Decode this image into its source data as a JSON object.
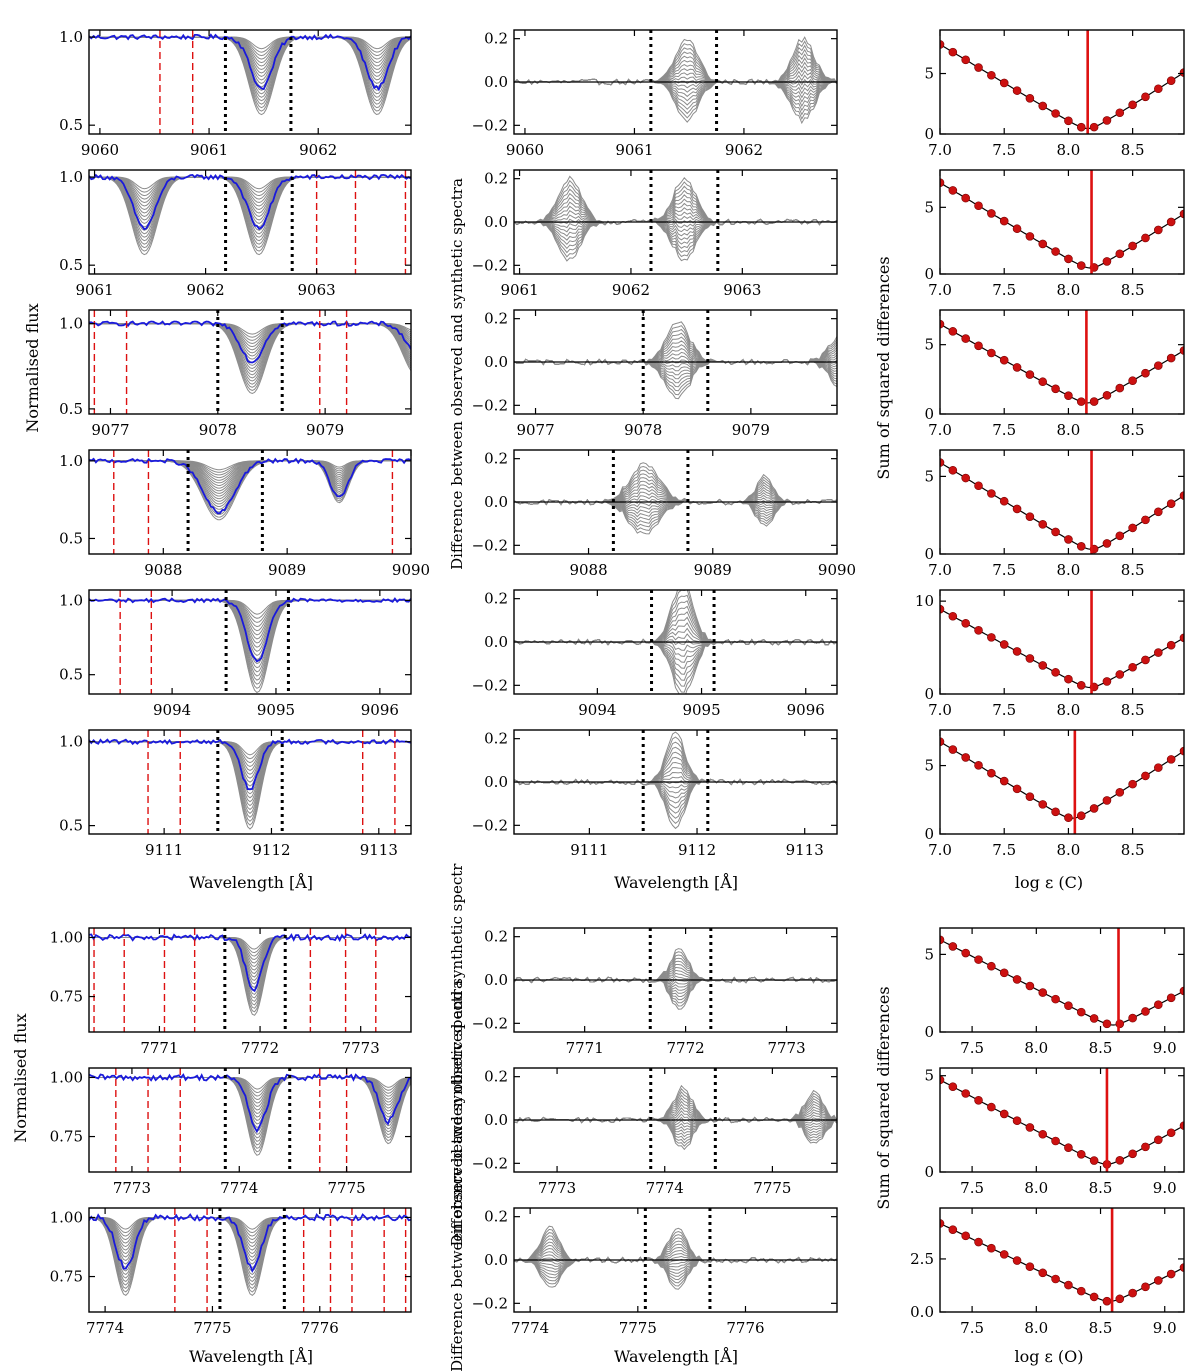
{
  "chart_data": {
    "type": "line",
    "title": "",
    "labels": {
      "flux_ylabel": "Normalised flux",
      "diff_ylabel": "Difference between observed and synthetic spectra",
      "diff_ylabel_o": "Difference between observed and synthetic spectr",
      "chi_ylabel": "Sum of squared differences",
      "wavelength_xlabel": "Wavelength [Å]",
      "abund_xlabel_c": "log ε (C)",
      "abund_xlabel_o": "log ε (O)"
    },
    "series_colors": {
      "observed": "#1a1adb",
      "synthetic": "#8c8c8c",
      "blend_marker": "#dd1111",
      "best_fit": "#dd1111",
      "fit_window": "#000000"
    },
    "rows": [
      {
        "element": "C",
        "flux": {
          "xlim": [
            9059.9,
            9062.85
          ],
          "xticks": [
            9060,
            9061,
            9062
          ],
          "yticks": [
            0.5,
            1.0
          ],
          "yticklabels": [
            "0.5",
            "1.0"
          ],
          "ylim": [
            0.45,
            1.04
          ],
          "lines": [
            {
              "center": 9061.48,
              "depth": 0.44,
              "width": 0.12
            },
            {
              "center": 9062.54,
              "depth": 0.44,
              "width": 0.12
            }
          ],
          "observed_depth_factor": 0.66,
          "window": [
            9061.15,
            9061.75
          ],
          "blend_markers": [
            9060.55,
            9060.85
          ]
        },
        "diff": {
          "xlim": [
            9059.9,
            9062.85
          ],
          "xticks": [
            9060,
            9061,
            9062
          ],
          "yticks": [
            -0.2,
            0.0,
            0.2
          ],
          "yticklabels": [
            "−0.2",
            "0.0",
            "0.2"
          ],
          "ylim": [
            -0.24,
            0.24
          ],
          "window": [
            9061.15,
            9061.75
          ]
        },
        "chi2": {
          "xlim": [
            7.0,
            8.9
          ],
          "xticks": [
            7.0,
            7.5,
            8.0,
            8.5
          ],
          "xticklabels": [
            "7.0",
            "7.5",
            "8.0",
            "8.5"
          ],
          "yticks": [
            0,
            5
          ],
          "yticklabels": [
            "0",
            "5"
          ],
          "ylim": [
            0,
            8.6
          ],
          "x_start": 7.0,
          "step": 0.1,
          "count": 19,
          "min_x": 8.15,
          "min_y": 0.45,
          "left_y": 7.8,
          "best": 8.15
        }
      },
      {
        "element": "C",
        "flux": {
          "xlim": [
            9060.95,
            9063.85
          ],
          "xticks": [
            9061,
            9062,
            9063
          ],
          "yticks": [
            0.5,
            1.0
          ],
          "yticklabels": [
            "0.5",
            "1.0"
          ],
          "ylim": [
            0.45,
            1.04
          ],
          "lines": [
            {
              "center": 9061.45,
              "depth": 0.44,
              "width": 0.12
            },
            {
              "center": 9062.48,
              "depth": 0.44,
              "width": 0.12
            }
          ],
          "observed_depth_factor": 0.66,
          "window": [
            9062.18,
            9062.78
          ],
          "blend_markers": [
            9063.0,
            9063.35,
            9063.8
          ]
        },
        "diff": {
          "xlim": [
            9060.95,
            9063.85
          ],
          "xticks": [
            9061,
            9062,
            9063
          ],
          "yticks": [
            -0.2,
            0.0,
            0.2
          ],
          "yticklabels": [
            "−0.2",
            "0.0",
            "0.2"
          ],
          "ylim": [
            -0.24,
            0.24
          ],
          "window": [
            9062.18,
            9062.78
          ]
        },
        "chi2": {
          "xlim": [
            7.0,
            8.9
          ],
          "xticks": [
            7.0,
            7.5,
            8.0,
            8.5
          ],
          "xticklabels": [
            "7.0",
            "7.5",
            "8.0",
            "8.5"
          ],
          "yticks": [
            0,
            5
          ],
          "yticklabels": [
            "0",
            "5"
          ],
          "ylim": [
            0,
            7.8
          ],
          "x_start": 7.0,
          "step": 0.1,
          "count": 19,
          "min_x": 8.17,
          "min_y": 0.45,
          "left_y": 7.2,
          "best": 8.18
        }
      },
      {
        "element": "C",
        "flux": {
          "xlim": [
            9076.8,
            9079.8
          ],
          "xticks": [
            9077,
            9078,
            9079
          ],
          "yticks": [
            0.5,
            1.0
          ],
          "yticklabels": [
            "0.5",
            "1.0"
          ],
          "ylim": [
            0.47,
            1.08
          ],
          "lines": [
            {
              "center": 9078.32,
              "depth": 0.41,
              "width": 0.13
            },
            {
              "center": 9079.85,
              "depth": 0.3,
              "width": 0.13
            }
          ],
          "observed_depth_factor": 0.55,
          "window": [
            9078.0,
            9078.6
          ],
          "blend_markers": [
            9076.85,
            9077.15,
            9078.95,
            9079.2
          ]
        },
        "diff": {
          "xlim": [
            9076.8,
            9079.8
          ],
          "xticks": [
            9077,
            9078,
            9079
          ],
          "yticks": [
            -0.2,
            0.0,
            0.2
          ],
          "yticklabels": [
            "−0.2",
            "0.0",
            "0.2"
          ],
          "ylim": [
            -0.24,
            0.24
          ],
          "window": [
            9078.0,
            9078.6
          ]
        },
        "chi2": {
          "xlim": [
            7.0,
            8.9
          ],
          "xticks": [
            7.0,
            7.5,
            8.0,
            8.5
          ],
          "xticklabels": [
            "7.0",
            "7.5",
            "8.0",
            "8.5"
          ],
          "yticks": [
            0,
            5
          ],
          "yticklabels": [
            "0",
            "5"
          ],
          "ylim": [
            0,
            7.5
          ],
          "x_start": 7.0,
          "step": 0.1,
          "count": 19,
          "min_x": 8.15,
          "min_y": 0.8,
          "left_y": 6.8,
          "best": 8.14
        }
      },
      {
        "element": "C",
        "flux": {
          "xlim": [
            9087.4,
            9090.0
          ],
          "xticks": [
            9088,
            9089,
            9090
          ],
          "yticks": [
            0.5,
            1.0
          ],
          "yticklabels": [
            "0.5",
            "1.0"
          ],
          "ylim": [
            0.4,
            1.07
          ],
          "lines": [
            {
              "center": 9088.45,
              "depth": 0.38,
              "width": 0.14
            },
            {
              "center": 9089.42,
              "depth": 0.27,
              "width": 0.08
            }
          ],
          "observed_depth_factor": 0.88,
          "window": [
            9088.2,
            9088.8
          ],
          "blend_markers": [
            9087.6,
            9087.88,
            9089.85
          ]
        },
        "diff": {
          "xlim": [
            9087.4,
            9090.0
          ],
          "xticks": [
            9088,
            9089,
            9090
          ],
          "yticks": [
            -0.2,
            0.0,
            0.2
          ],
          "yticklabels": [
            "−0.2",
            "0.0",
            "0.2"
          ],
          "ylim": [
            -0.24,
            0.24
          ],
          "window": [
            9088.2,
            9088.8
          ]
        },
        "chi2": {
          "xlim": [
            7.0,
            8.9
          ],
          "xticks": [
            7.0,
            7.5,
            8.0,
            8.5
          ],
          "xticklabels": [
            "7.0",
            "7.5",
            "8.0",
            "8.5"
          ],
          "yticks": [
            0,
            5
          ],
          "yticklabels": [
            "0",
            "5"
          ],
          "ylim": [
            0,
            6.7
          ],
          "x_start": 7.0,
          "step": 0.1,
          "count": 19,
          "min_x": 8.18,
          "min_y": 0.3,
          "left_y": 6.2,
          "best": 8.18
        }
      },
      {
        "element": "C",
        "flux": {
          "xlim": [
            9093.2,
            9096.3
          ],
          "xticks": [
            9094,
            9095,
            9096
          ],
          "yticks": [
            0.5,
            1.0
          ],
          "yticklabels": [
            "0.5",
            "1.0"
          ],
          "ylim": [
            0.37,
            1.07
          ],
          "lines": [
            {
              "center": 9094.82,
              "depth": 0.62,
              "width": 0.12
            }
          ],
          "observed_depth_factor": 0.66,
          "window": [
            9094.52,
            9095.12
          ],
          "blend_markers": [
            9093.5,
            9093.8
          ]
        },
        "diff": {
          "xlim": [
            9093.2,
            9096.3
          ],
          "xticks": [
            9094,
            9095,
            9096
          ],
          "yticks": [
            -0.2,
            0.0,
            0.2
          ],
          "yticklabels": [
            "−0.2",
            "0.0",
            "0.2"
          ],
          "ylim": [
            -0.24,
            0.24
          ],
          "window": [
            9094.52,
            9095.12
          ]
        },
        "chi2": {
          "xlim": [
            7.0,
            8.9
          ],
          "xticks": [
            7.0,
            7.5,
            8.0,
            8.5
          ],
          "xticklabels": [
            "7.0",
            "7.5",
            "8.0",
            "8.5"
          ],
          "yticks": [
            0,
            10
          ],
          "yticklabels": [
            "0",
            "10"
          ],
          "ylim": [
            0,
            11.2
          ],
          "x_start": 7.0,
          "step": 0.1,
          "count": 19,
          "min_x": 8.17,
          "min_y": 0.7,
          "left_y": 9.6,
          "best": 8.18
        }
      },
      {
        "element": "C",
        "flux": {
          "xlim": [
            9110.3,
            9113.3
          ],
          "xticks": [
            9111,
            9112,
            9113
          ],
          "yticks": [
            0.5,
            1.0
          ],
          "yticklabels": [
            "0.5",
            "1.0"
          ],
          "ylim": [
            0.45,
            1.07
          ],
          "lines": [
            {
              "center": 9111.8,
              "depth": 0.52,
              "width": 0.1
            }
          ],
          "observed_depth_factor": 0.55,
          "window": [
            9111.5,
            9112.1
          ],
          "blend_markers": [
            9110.85,
            9111.15,
            9112.85,
            9113.15
          ]
        },
        "diff": {
          "xlim": [
            9110.3,
            9113.3
          ],
          "xticks": [
            9111,
            9112,
            9113
          ],
          "yticks": [
            -0.2,
            0.0,
            0.2
          ],
          "yticklabels": [
            "−0.2",
            "0.0",
            "0.2"
          ],
          "ylim": [
            -0.24,
            0.24
          ],
          "window": [
            9111.5,
            9112.1
          ]
        },
        "chi2": {
          "xlim": [
            7.0,
            8.9
          ],
          "xticks": [
            7.0,
            7.5,
            8.0,
            8.5
          ],
          "xticklabels": [
            "7.0",
            "7.5",
            "8.0",
            "8.5"
          ],
          "yticks": [
            0,
            5
          ],
          "yticklabels": [
            "0",
            "5"
          ],
          "ylim": [
            0,
            7.6
          ],
          "x_start": 7.0,
          "step": 0.1,
          "count": 19,
          "min_x": 8.03,
          "min_y": 1.15,
          "left_y": 7.1,
          "best": 8.05
        }
      },
      {
        "element": "O",
        "flux": {
          "xlim": [
            7770.3,
            7773.5
          ],
          "xticks": [
            7771,
            7772,
            7773
          ],
          "yticks": [
            0.75,
            1.0
          ],
          "yticklabels": [
            "0.75",
            "1.00"
          ],
          "ylim": [
            0.6,
            1.04
          ],
          "lines": [
            {
              "center": 7771.94,
              "depth": 0.33,
              "width": 0.1
            }
          ],
          "observed_depth_factor": 0.66,
          "window": [
            7771.65,
            7772.25
          ],
          "blend_markers": [
            7770.35,
            7770.65,
            7771.05,
            7771.35,
            7772.5,
            7772.85,
            7773.15
          ]
        },
        "diff": {
          "xlim": [
            7770.3,
            7773.5
          ],
          "xticks": [
            7771,
            7772,
            7773
          ],
          "yticks": [
            -0.2,
            0.0,
            0.2
          ],
          "yticklabels": [
            "−0.2",
            "0.0",
            "0.2"
          ],
          "ylim": [
            -0.24,
            0.24
          ],
          "window": [
            7771.65,
            7772.25
          ]
        },
        "chi2": {
          "xlim": [
            7.25,
            9.15
          ],
          "xticks": [
            7.5,
            8.0,
            8.5,
            9.0
          ],
          "xticklabels": [
            "7.5",
            "8.0",
            "8.5",
            "9.0"
          ],
          "yticks": [
            0,
            5
          ],
          "yticklabels": [
            "0",
            "5"
          ],
          "ylim": [
            0,
            6.7
          ],
          "x_start": 7.25,
          "step": 0.1,
          "count": 19,
          "min_x": 8.6,
          "min_y": 0.45,
          "left_y": 6.2,
          "best": 8.64
        }
      },
      {
        "element": "O",
        "flux": {
          "xlim": [
            7772.6,
            7775.6
          ],
          "xticks": [
            7773,
            7774,
            7775
          ],
          "yticks": [
            0.75,
            1.0
          ],
          "yticklabels": [
            "0.75",
            "1.00"
          ],
          "ylim": [
            0.6,
            1.04
          ],
          "lines": [
            {
              "center": 7774.17,
              "depth": 0.33,
              "width": 0.1
            },
            {
              "center": 7775.39,
              "depth": 0.28,
              "width": 0.1
            }
          ],
          "observed_depth_factor": 0.66,
          "window": [
            7773.87,
            7774.47
          ],
          "blend_markers": [
            7772.85,
            7773.15,
            7773.45,
            7774.75,
            7775.0
          ]
        },
        "diff": {
          "xlim": [
            7772.6,
            7775.6
          ],
          "xticks": [
            7773,
            7774,
            7775
          ],
          "yticks": [
            -0.2,
            0.0,
            0.2
          ],
          "yticklabels": [
            "−0.2",
            "0.0",
            "0.2"
          ],
          "ylim": [
            -0.24,
            0.24
          ],
          "window": [
            7773.87,
            7774.47
          ]
        },
        "chi2": {
          "xlim": [
            7.25,
            9.15
          ],
          "xticks": [
            7.5,
            8.0,
            8.5,
            9.0
          ],
          "xticklabels": [
            "7.5",
            "8.0",
            "8.5",
            "9.0"
          ],
          "yticks": [
            0,
            5
          ],
          "yticklabels": [
            "0",
            "5"
          ],
          "ylim": [
            0,
            5.4
          ],
          "x_start": 7.25,
          "step": 0.1,
          "count": 19,
          "min_x": 8.55,
          "min_y": 0.4,
          "left_y": 5.0,
          "best": 8.55
        }
      },
      {
        "element": "O",
        "flux": {
          "xlim": [
            7773.85,
            7776.85
          ],
          "xticks": [
            7774,
            7775,
            7776
          ],
          "yticks": [
            0.75,
            1.0
          ],
          "yticklabels": [
            "0.75",
            "1.00"
          ],
          "ylim": [
            0.6,
            1.04
          ],
          "lines": [
            {
              "center": 7774.19,
              "depth": 0.33,
              "width": 0.1
            },
            {
              "center": 7775.37,
              "depth": 0.33,
              "width": 0.1
            }
          ],
          "observed_depth_factor": 0.66,
          "window": [
            7775.07,
            7775.67
          ],
          "blend_markers": [
            7774.65,
            7774.95,
            7775.85,
            7776.1,
            7776.3,
            7776.6,
            7776.8
          ]
        },
        "diff": {
          "xlim": [
            7773.85,
            7776.85
          ],
          "xticks": [
            7774,
            7775,
            7776
          ],
          "yticks": [
            -0.2,
            0.0,
            0.2
          ],
          "yticklabels": [
            "−0.2",
            "0.0",
            "0.2"
          ],
          "ylim": [
            -0.24,
            0.24
          ],
          "window": [
            7775.07,
            7775.67
          ]
        },
        "chi2": {
          "xlim": [
            7.25,
            9.15
          ],
          "xticks": [
            7.5,
            8.0,
            8.5,
            9.0
          ],
          "xticklabels": [
            "7.5",
            "8.0",
            "8.5",
            "9.0"
          ],
          "yticks": [
            0,
            2.5
          ],
          "yticklabels": [
            "0.0",
            "2.5"
          ],
          "ylim": [
            0,
            4.9
          ],
          "x_start": 7.25,
          "step": 0.1,
          "count": 19,
          "min_x": 8.57,
          "min_y": 0.5,
          "left_y": 4.35,
          "best": 8.59
        }
      }
    ]
  }
}
